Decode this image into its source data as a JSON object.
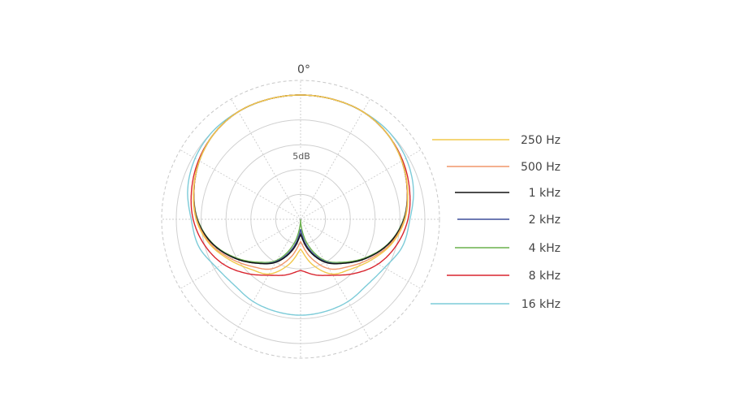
{
  "chart_data": {
    "type": "polar",
    "angle_label": "0°",
    "scale_label": "5dB",
    "r_range_db": [
      -25,
      0
    ],
    "ring_step_db": 5,
    "spoke_step_deg": 30,
    "grid": true,
    "legend_placement": "right",
    "angles_deg": [
      0,
      15,
      30,
      45,
      60,
      75,
      90,
      105,
      120,
      135,
      150,
      165,
      180
    ],
    "symmetric": true,
    "series": [
      {
        "name": "250 Hz",
        "color": "#f2c84b",
        "values_db": [
          0,
          0,
          0,
          -0.5,
          -1.5,
          -2.7,
          -4,
          -6,
          -8.6,
          -10.8,
          -12.3,
          -15.5,
          -19
        ]
      },
      {
        "name": "500 Hz",
        "color": "#f0956a",
        "values_db": [
          0,
          0,
          0,
          -0.5,
          -1.5,
          -2.8,
          -4.1,
          -6.2,
          -9,
          -11.5,
          -13.5,
          -17,
          -20.5
        ]
      },
      {
        "name": "1 kHz",
        "color": "#111111",
        "values_db": [
          0,
          0,
          0,
          -0.5,
          -1.5,
          -2.8,
          -4.2,
          -6.5,
          -9.5,
          -12.5,
          -15,
          -18.5,
          -22
        ]
      },
      {
        "name": "2 kHz",
        "color": "#3f4f9a",
        "values_db": [
          0,
          0,
          0,
          -0.5,
          -1.5,
          -2.8,
          -4.2,
          -6.5,
          -9.5,
          -12.5,
          -15.2,
          -19,
          -23
        ]
      },
      {
        "name": "4 kHz",
        "color": "#6ab04c",
        "values_db": [
          0,
          0,
          0,
          -0.5,
          -1.5,
          -2.8,
          -4.3,
          -6.6,
          -9.7,
          -12.8,
          -15.5,
          -20,
          -25
        ]
      },
      {
        "name": "8 kHz",
        "color": "#d9252f",
        "values_db": [
          0,
          0,
          0,
          -0.5,
          -1.3,
          -2.3,
          -3.4,
          -5,
          -7,
          -9.6,
          -12,
          -13.4,
          -14.7
        ]
      },
      {
        "name": "16 kHz",
        "color": "#7ccbd8",
        "values_db": [
          0,
          0,
          0,
          0,
          -0.5,
          -1.5,
          -3,
          -3.8,
          -5.5,
          -6.2,
          -5.9,
          -5.8,
          -5.7
        ]
      }
    ]
  }
}
